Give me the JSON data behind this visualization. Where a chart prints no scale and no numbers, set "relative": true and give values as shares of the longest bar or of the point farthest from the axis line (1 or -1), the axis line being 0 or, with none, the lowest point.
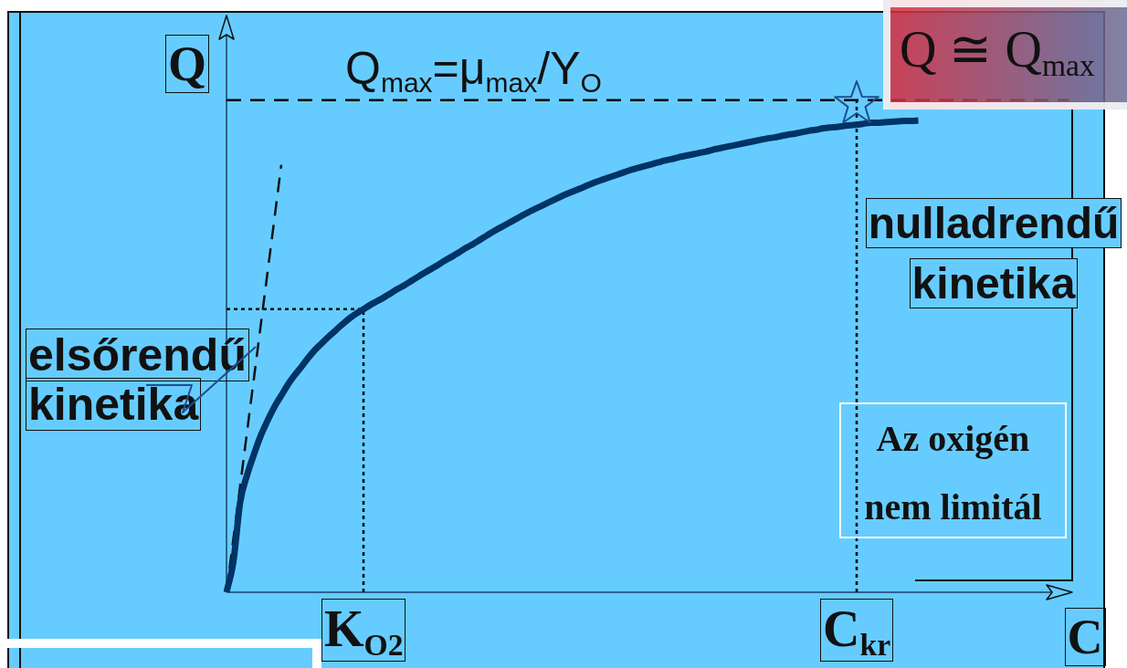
{
  "chart_data": {
    "type": "line",
    "relative": true,
    "xlabel": "C",
    "ylabel": "Q",
    "marker": "none",
    "categories": [
      null,
      null,
      null,
      null,
      null,
      null,
      null,
      null,
      null,
      null,
      null,
      null,
      null,
      null,
      null,
      null,
      null,
      null,
      null,
      null,
      "K$_{O2}$",
      null,
      null,
      null,
      null,
      null,
      null,
      null,
      null,
      null,
      null,
      null,
      null,
      null,
      null,
      null,
      null,
      null,
      null,
      null,
      null,
      null,
      null,
      null,
      null,
      null,
      null,
      null,
      null,
      null,
      null,
      null,
      null,
      null,
      null,
      null,
      null,
      null,
      null,
      null,
      null,
      null,
      null,
      null,
      null,
      null,
      null,
      null,
      null,
      null,
      null,
      null,
      null,
      null,
      null,
      null,
      null,
      null,
      null,
      null,
      null,
      null,
      null,
      null,
      null,
      null,
      null,
      null,
      null,
      null,
      null,
      null,
      "C$_{kr}$",
      null,
      null,
      null,
      null,
      null,
      null,
      null,
      null,
      null,
      null,
      null,
      null,
      null,
      null,
      null,
      null,
      null,
      null,
      null,
      null,
      null,
      null,
      null,
      null,
      null,
      null,
      null,
      null,
      null,
      null,
      null
    ],
    "series": [
      {
        "color": "#003366",
        "values": [
          0,
          0.064,
          0.191,
          0.248,
          0.292,
          0.332,
          0.364,
          0.393,
          0.417,
          0.441,
          0.461,
          0.479,
          0.498,
          0.515,
          0.529,
          0.543,
          0.556,
          0.569,
          0.581,
          0.591,
          0.6,
          0.609,
          0.617,
          0.625,
          0.634,
          0.643,
          0.651,
          0.66,
          0.669,
          0.678,
          0.686,
          0.695,
          0.704,
          0.712,
          0.721,
          0.73,
          0.738,
          0.747,
          0.756,
          0.765,
          0.773,
          0.781,
          0.789,
          0.797,
          0.805,
          0.812,
          0.819,
          0.826,
          0.833,
          0.84,
          0.846,
          0.852,
          0.858,
          0.864,
          0.87,
          0.875,
          0.88,
          0.885,
          0.89,
          0.895,
          0.899,
          0.903,
          0.907,
          0.911,
          0.915,
          0.918,
          0.922,
          0.925,
          0.928,
          0.931,
          0.934,
          0.938,
          0.941,
          0.944,
          0.947,
          0.95,
          0.953,
          0.956,
          0.959,
          0.962,
          0.964,
          0.967,
          0.97,
          0.972,
          0.975,
          0.978,
          0.98,
          0.983,
          0.985,
          0.986,
          0.988,
          0.99,
          0.991,
          0.993,
          0.995,
          0.995,
          0.996,
          0.997,
          0.998,
          0.999,
          0.999,
          1,
          null,
          null,
          null,
          null,
          null,
          null,
          null,
          null,
          null,
          null,
          null,
          null,
          null,
          null,
          null,
          null,
          null,
          null,
          null,
          null,
          null,
          null
        ]
      },
      {
        "color": "#111111",
        "line_style": "dashed",
        "values": [
          0,
          0.113,
          0.226,
          0.34,
          0.453,
          0.566,
          0.679,
          0.792,
          0.906,
          null,
          null,
          null,
          null,
          null,
          null,
          null,
          null,
          null,
          null,
          null,
          null,
          null,
          null,
          null,
          null,
          null,
          null,
          null,
          null,
          null,
          null,
          null,
          null,
          null,
          null,
          null,
          null,
          null,
          null,
          null,
          null,
          null,
          null,
          null,
          null,
          null,
          null,
          null,
          null,
          null,
          null,
          null,
          null,
          null,
          null,
          null,
          null,
          null,
          null,
          null,
          null,
          null,
          null,
          null,
          null,
          null,
          null,
          null,
          null,
          null,
          null,
          null,
          null,
          null,
          null,
          null,
          null,
          null,
          null,
          null,
          null,
          null,
          null,
          null,
          null,
          null,
          null,
          null,
          null,
          null,
          null,
          null,
          null,
          null,
          null,
          null,
          null,
          null,
          null,
          null,
          null,
          null,
          null,
          null,
          null,
          null,
          null,
          null,
          null,
          null,
          null,
          null,
          null,
          null,
          null,
          null,
          null,
          null,
          null,
          null,
          null,
          null,
          null,
          null
        ]
      }
    ],
    "ref_lines": [
      {
        "axis": "y",
        "value": 1.043,
        "label": "Q$_{max}$=μ$_{max}$/Y$_{O}$",
        "line_style": "dashed",
        "color": "#000000"
      },
      {
        "axis": "y",
        "value": 0.6,
        "line_style": "dotted",
        "color": "#000000"
      },
      {
        "axis": "x",
        "value": "K$_{O2}$",
        "line_style": "dotted",
        "color": "#000000"
      },
      {
        "axis": "x",
        "value": "C$_{kr}$",
        "line_style": "dotted",
        "color": "#000000"
      }
    ],
    "annotations": [
      "elsőrendű kinetika",
      "nulladrendű kinetika",
      "Az oxigén nem limitál",
      "Q ≅ Q$_{max}$"
    ]
  }
}
